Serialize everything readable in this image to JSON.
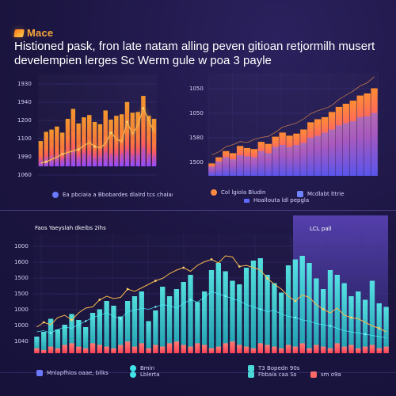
{
  "header": {
    "brand": "Mace",
    "title": "Histioned pask, fron late natam alling peven gitioan retjormilh musert",
    "subtitle": "develempien lerges Sc Werm gule w poa 3 payle"
  },
  "colors": {
    "background": "#1b1540",
    "panel_bg": "#1d1747",
    "grid": "#3e357a",
    "orange": "#ff7d2d",
    "pink": "#ff4e7b",
    "purple": "#7d5cff",
    "blue": "#5c65ff",
    "cyan": "#3fe4ea",
    "teal": "#23c6d0",
    "red": "#ff5b58",
    "yellow": "#f7b84a"
  },
  "panels": {
    "top_left": {
      "legend": [
        {
          "label": "Ea pbciaia a Bbobardes dlalrd tcs chaiare",
          "icon": "circle-icon",
          "color": "#6b79ff"
        }
      ]
    },
    "top_right": {
      "legend": [
        {
          "label": "Col lgiola Bludin",
          "icon": "circle-icon",
          "color": "#ff8b42"
        },
        {
          "label": "Hoallouta ldl pepgla",
          "icon": "small-rect-icon",
          "color": "#5d6bff"
        },
        {
          "label": "Mcdlabt lttrie",
          "icon": "rect-icon",
          "color": "#6f84ff"
        }
      ]
    },
    "bottom": {
      "header_label": "Faos Yaeyslah dkeibs 2ihs",
      "highlight_label": "LCL pall",
      "legend": [
        {
          "label": "Mnlapfhios oaae, bllks",
          "icon": "rect-icon",
          "color": "#6b79ff"
        },
        {
          "label": "Bmin",
          "icon": "circle-icon",
          "color": "#3fe4ea"
        },
        {
          "label": "Lblerta",
          "icon": "circle-icon",
          "color": "#3fe4ea"
        },
        {
          "label": "T3 Bopedn 90s",
          "icon": "rect-icon",
          "color": "#4bd9d7"
        }
      ],
      "secondary_legend": [
        {
          "label": "Fbbaia caa Ss",
          "icon": "rect-icon",
          "color": "#4bd9d7"
        },
        {
          "label": "sm o9a",
          "icon": "rect-icon",
          "color": "#ff6a64"
        }
      ]
    }
  },
  "chart_data": [
    {
      "type": "bar",
      "ylim": [
        0,
        120
      ],
      "ticks": [
        "1930",
        "1940",
        "1200",
        "1100",
        "1990",
        "1060"
      ],
      "series": [
        {
          "values": [
            33,
            45,
            48,
            52,
            44,
            62,
            75,
            56,
            64,
            67,
            58,
            55,
            73,
            61,
            66,
            68,
            84,
            70,
            71,
            92,
            66,
            62
          ],
          "color": "#ff7d2d"
        },
        {
          "values": [
            18,
            26,
            30,
            25,
            24,
            39,
            44,
            28,
            39,
            34,
            27,
            34,
            40,
            31,
            35,
            36,
            47,
            35,
            41,
            55,
            40,
            33
          ],
          "color": "#ff4e7b"
        },
        {
          "values": [
            9,
            12,
            14,
            13,
            10,
            18,
            21,
            12,
            17,
            14,
            10,
            12,
            18,
            16,
            14,
            17,
            20,
            15,
            16,
            24,
            16,
            13
          ],
          "color": "#7d5cff"
        }
      ],
      "line": [
        4,
        6,
        9,
        12,
        16,
        18,
        20,
        22,
        27,
        31,
        26,
        24,
        30,
        44,
        36,
        32,
        58,
        42,
        54,
        76,
        60,
        45
      ]
    },
    {
      "type": "bar",
      "ylim": [
        0,
        100
      ],
      "ticks": [
        "1050",
        "1050",
        "1580",
        "1500"
      ],
      "series": [
        {
          "values": [
            12,
            18,
            24,
            22,
            29,
            27,
            26,
            33,
            31,
            38,
            42,
            39,
            41,
            45,
            52,
            55,
            57,
            62,
            67,
            70,
            73,
            78,
            80,
            85
          ],
          "color": "#ff7d2d"
        },
        {
          "values": [
            9,
            14,
            18,
            16,
            20,
            19,
            18,
            24,
            22,
            28,
            30,
            28,
            30,
            32,
            37,
            39,
            42,
            45,
            49,
            51,
            53,
            57,
            58,
            61
          ],
          "color": "#5c65ff"
        }
      ],
      "accent_values": [
        18,
        21,
        26,
        28,
        31,
        30,
        33,
        35,
        36,
        40,
        45,
        47,
        49,
        53,
        58,
        61,
        63,
        66,
        72,
        76,
        80,
        85,
        88,
        94
      ]
    },
    {
      "type": "bar",
      "ylim": [
        0,
        100
      ],
      "ticks": [
        "1000",
        "1600",
        "1500",
        "1500",
        "1000",
        "1000",
        "1040"
      ],
      "bars": [
        14,
        18,
        29,
        20,
        24,
        33,
        28,
        22,
        34,
        37,
        44,
        40,
        31,
        44,
        48,
        52,
        27,
        36,
        56,
        48,
        54,
        60,
        66,
        43,
        52,
        70,
        76,
        69,
        61,
        58,
        72,
        78,
        80,
        66,
        59,
        51,
        74,
        79,
        82,
        76,
        63,
        54,
        70,
        66,
        59,
        48,
        52,
        45,
        61,
        42,
        39
      ],
      "line": [
        22,
        26,
        24,
        30,
        32,
        28,
        34,
        38,
        39,
        45,
        48,
        46,
        47,
        54,
        52,
        55,
        58,
        61,
        63,
        67,
        70,
        72,
        69,
        74,
        77,
        79,
        76,
        82,
        81,
        73,
        74,
        72,
        70,
        63,
        58,
        54,
        48,
        44,
        49,
        47,
        41,
        37,
        34,
        38,
        32,
        30,
        29,
        26,
        23,
        21,
        18
      ],
      "line2": [
        18,
        19,
        17,
        20,
        22,
        21,
        24,
        27,
        30,
        32,
        34,
        31,
        29,
        35,
        36,
        38,
        37,
        39,
        41,
        40,
        38,
        42,
        45,
        43,
        47,
        52,
        50,
        48,
        46,
        44,
        41,
        39,
        37,
        35,
        36,
        33,
        31,
        30,
        28,
        27,
        25,
        24,
        23,
        21,
        19,
        18,
        17,
        16,
        15,
        14,
        13
      ],
      "red_bars": [
        3,
        2,
        4,
        3,
        5,
        6,
        4,
        3,
        6,
        5,
        4,
        3,
        5,
        7,
        4,
        6,
        3,
        5,
        4,
        6,
        7,
        5,
        4,
        6,
        5,
        3,
        4,
        6,
        7,
        5,
        4,
        3,
        6,
        5,
        4,
        3,
        5,
        4,
        6,
        3,
        5,
        4,
        3,
        6,
        4,
        5,
        3,
        4,
        5,
        3,
        4
      ]
    }
  ]
}
